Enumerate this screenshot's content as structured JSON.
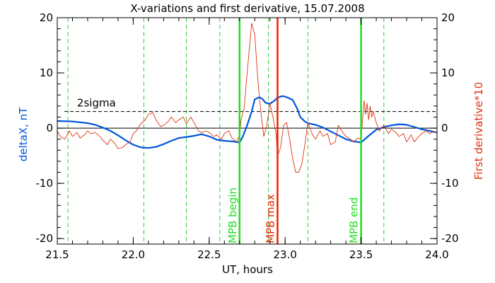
{
  "chart_data": {
    "type": "line",
    "title": "X-variations and first derivative, 15.07.2008",
    "xlabel": "UT, hours",
    "ylabel_left": "deltaX, nT",
    "ylabel_right": "First derivative*10",
    "xlim": [
      21.5,
      24.0
    ],
    "ylim": [
      -21,
      20
    ],
    "x_ticks": [
      "21.5",
      "22.0",
      "22.5",
      "23.0",
      "23.5",
      "24.0"
    ],
    "y_ticks_left": [
      "-20",
      "-10",
      "0",
      "10",
      "20"
    ],
    "y_ticks_right": [
      "-20",
      "-10",
      "0",
      "10",
      "20"
    ],
    "colors": {
      "deltaX": "#0055dd",
      "derivative": "#dd3311",
      "green": "#22dd22",
      "red_marker": "#ee2200",
      "dashed_green": "#33cc33"
    },
    "sigma_level": {
      "label": "2sigma",
      "value": 3
    },
    "zero_line": 0,
    "dashed_verticals": [
      21.57,
      22.07,
      22.35,
      22.57,
      22.89,
      23.15,
      23.65
    ],
    "markers": [
      {
        "label": "MPB begin",
        "x": 22.7,
        "color": "#22dd22"
      },
      {
        "label": "MPB max",
        "x": 22.95,
        "color": "#ee2200"
      },
      {
        "label": "MPB end",
        "x": 23.5,
        "color": "#22dd22"
      }
    ],
    "series": [
      {
        "name": "deltaX",
        "axis": "left",
        "x": [
          21.5,
          21.6,
          21.7,
          21.75,
          21.8,
          21.85,
          21.9,
          21.95,
          22.0,
          22.05,
          22.1,
          22.15,
          22.2,
          22.25,
          22.3,
          22.35,
          22.4,
          22.45,
          22.5,
          22.55,
          22.6,
          22.65,
          22.7,
          22.72,
          22.75,
          22.78,
          22.8,
          22.83,
          22.85,
          22.87,
          22.9,
          22.93,
          22.95,
          22.98,
          23.0,
          23.02,
          23.05,
          23.08,
          23.1,
          23.13,
          23.15,
          23.2,
          23.25,
          23.3,
          23.35,
          23.4,
          23.45,
          23.5,
          23.55,
          23.6,
          23.65,
          23.7,
          23.75,
          23.8,
          23.85,
          23.9,
          23.95,
          24.0
        ],
        "y": [
          1.3,
          1.2,
          0.9,
          0.6,
          0.1,
          -0.5,
          -1.3,
          -2.2,
          -3.0,
          -3.5,
          -3.6,
          -3.4,
          -2.9,
          -2.3,
          -1.8,
          -1.6,
          -1.4,
          -1.1,
          -1.5,
          -2.1,
          -2.3,
          -2.4,
          -2.6,
          -1.6,
          0.5,
          3.0,
          5.2,
          5.6,
          5.3,
          4.6,
          4.4,
          5.0,
          5.5,
          5.8,
          5.7,
          5.5,
          5.1,
          3.5,
          2.0,
          1.2,
          0.9,
          0.6,
          0.1,
          -0.6,
          -1.3,
          -2.0,
          -2.4,
          -2.6,
          -1.4,
          -0.3,
          0.2,
          0.5,
          0.7,
          0.6,
          0.2,
          -0.2,
          -0.5,
          -0.8
        ]
      },
      {
        "name": "First derivative*10",
        "axis": "right",
        "x": [
          21.5,
          21.52,
          21.55,
          21.58,
          21.6,
          21.63,
          21.65,
          21.68,
          21.7,
          21.72,
          21.75,
          21.78,
          21.8,
          21.83,
          21.85,
          21.88,
          21.9,
          21.93,
          21.95,
          21.98,
          22.0,
          22.02,
          22.05,
          22.08,
          22.1,
          22.13,
          22.15,
          22.18,
          22.2,
          22.23,
          22.25,
          22.28,
          22.3,
          22.33,
          22.35,
          22.38,
          22.4,
          22.43,
          22.45,
          22.48,
          22.5,
          22.53,
          22.55,
          22.58,
          22.6,
          22.63,
          22.65,
          22.68,
          22.7,
          22.71,
          22.73,
          22.75,
          22.77,
          22.78,
          22.8,
          22.82,
          22.84,
          22.86,
          22.88,
          22.9,
          22.92,
          22.94,
          22.95,
          22.97,
          22.99,
          23.01,
          23.03,
          23.05,
          23.07,
          23.09,
          23.11,
          23.13,
          23.15,
          23.18,
          23.2,
          23.23,
          23.25,
          23.28,
          23.3,
          23.33,
          23.35,
          23.38,
          23.4,
          23.43,
          23.45,
          23.48,
          23.5,
          23.51,
          23.52,
          23.53,
          23.54,
          23.55,
          23.56,
          23.57,
          23.58,
          23.6,
          23.62,
          23.65,
          23.68,
          23.7,
          23.73,
          23.75,
          23.78,
          23.8,
          23.83,
          23.85,
          23.88,
          23.9,
          23.93,
          23.95,
          23.98,
          24.0
        ],
        "y": [
          -0.5,
          -1.5,
          -2.0,
          -0.5,
          -1.5,
          -0.8,
          -1.8,
          -1.2,
          -0.5,
          -1.0,
          -0.8,
          -1.5,
          -2.2,
          -3.0,
          -2.0,
          -2.8,
          -3.7,
          -3.5,
          -3.0,
          -2.5,
          -1.0,
          -0.5,
          0.8,
          1.5,
          2.5,
          2.8,
          1.5,
          0.3,
          0.5,
          1.2,
          2.0,
          1.0,
          1.5,
          2.0,
          0.8,
          2.0,
          1.0,
          -0.5,
          -0.8,
          -0.5,
          -0.8,
          -1.5,
          -1.2,
          -2.0,
          -1.0,
          -0.5,
          -1.8,
          -2.5,
          -1.2,
          1.5,
          3.5,
          10.0,
          16.0,
          19.0,
          17.0,
          9.0,
          3.0,
          -1.5,
          0.5,
          4.5,
          2.0,
          -1.0,
          -5.0,
          -3.5,
          0.5,
          1.0,
          -2.0,
          -5.5,
          -8.0,
          -8.0,
          -6.5,
          -3.0,
          1.0,
          -1.2,
          -2.0,
          -0.5,
          -1.5,
          -1.0,
          -3.0,
          -2.5,
          0.5,
          -0.8,
          -1.5,
          -2.0,
          -2.5,
          -1.8,
          -2.0,
          1.5,
          5.0,
          2.5,
          4.5,
          1.5,
          4.0,
          2.0,
          3.0,
          1.0,
          -0.5,
          0.5,
          -1.0,
          -0.2,
          -0.8,
          -1.5,
          -1.0,
          -2.5,
          -1.2,
          -2.5,
          -1.5,
          -1.0,
          -0.5,
          -1.0,
          -0.6,
          -0.8
        ]
      }
    ]
  }
}
